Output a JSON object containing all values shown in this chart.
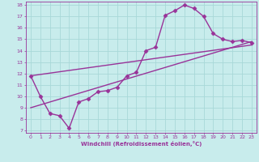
{
  "title": "",
  "xlabel": "Windchill (Refroidissement éolien,°C)",
  "xlim": [
    0,
    23
  ],
  "ylim": [
    7,
    18
  ],
  "xticks": [
    0,
    1,
    2,
    3,
    4,
    5,
    6,
    7,
    8,
    9,
    10,
    11,
    12,
    13,
    14,
    15,
    16,
    17,
    18,
    19,
    20,
    21,
    22,
    23
  ],
  "yticks": [
    7,
    8,
    9,
    10,
    11,
    12,
    13,
    14,
    15,
    16,
    17,
    18
  ],
  "bg_color": "#c8ecec",
  "grid_color": "#a8d8d8",
  "line_color": "#993399",
  "line1_x": [
    0,
    1,
    2,
    3,
    4,
    5,
    6,
    7,
    8,
    9,
    10,
    11,
    12,
    13,
    14,
    15,
    16,
    17,
    18,
    19,
    20,
    21,
    22,
    23
  ],
  "line1_y": [
    11.8,
    10.0,
    8.5,
    8.3,
    7.2,
    9.5,
    9.8,
    10.4,
    10.5,
    10.8,
    11.8,
    12.1,
    14.0,
    14.3,
    17.1,
    17.5,
    18.0,
    17.7,
    17.0,
    15.5,
    15.0,
    14.8,
    14.9,
    14.7
  ],
  "line2_x": [
    0,
    23
  ],
  "line2_y": [
    9.0,
    14.8
  ],
  "line3_x": [
    0,
    23
  ],
  "line3_y": [
    11.8,
    14.5
  ],
  "marker": "D",
  "markersize": 2.5,
  "linewidth": 1.0
}
